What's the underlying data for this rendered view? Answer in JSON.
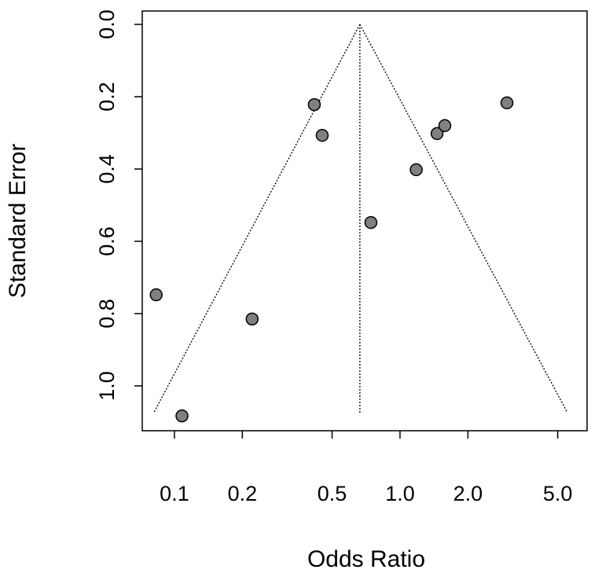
{
  "chart_data": {
    "type": "scatter",
    "x_label": "Odds Ratio",
    "y_label": "Standard Error",
    "x_log": true,
    "y_reversed": true,
    "xlim": [
      0.072,
      6.75
    ],
    "ylim": [
      -0.037,
      1.124
    ],
    "xticks": [
      0.1,
      0.2,
      0.5,
      {
        "value": 1,
        "label": "1.0"
      },
      {
        "value": 2,
        "label": "2.0"
      },
      {
        "value": 5,
        "label": "5.0"
      }
    ],
    "yticks": [
      {
        "value": 0,
        "label": "0.0"
      },
      0.2,
      0.4,
      0.6,
      0.8,
      {
        "value": 1,
        "label": "1.0"
      }
    ],
    "series": [
      {
        "color": "#808080",
        "x": [
          0.083,
          0.108,
          0.221,
          0.417,
          0.452,
          0.743,
          1.18,
          1.46,
          1.58,
          2.98
        ],
        "values": [
          0.748,
          1.083,
          0.815,
          0.222,
          0.307,
          0.548,
          0.402,
          0.302,
          0.28,
          0.217
        ]
      }
    ],
    "funnel_lines": [
      {
        "x": [
          0.664,
          0.664
        ],
        "values": [
          0,
          1.074
        ]
      },
      {
        "x": [
          0.664,
          0.081
        ],
        "values": [
          0,
          1.074
        ]
      },
      {
        "x": [
          0.664,
          5.52
        ],
        "values": [
          0,
          1.074
        ]
      }
    ]
  }
}
